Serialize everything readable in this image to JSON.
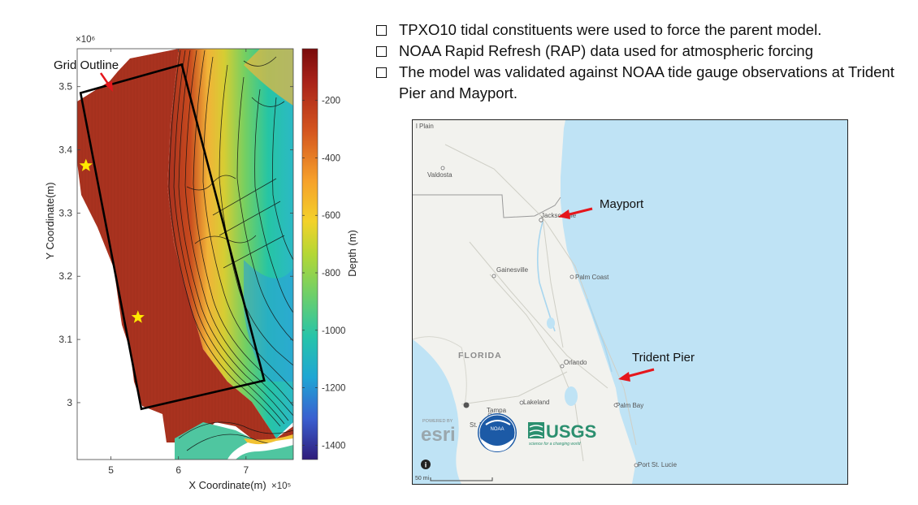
{
  "bathymetry_chart": {
    "chart_data": {
      "type": "heatmap",
      "title": "",
      "xlabel": "X Coordinate(m)",
      "ylabel": "Y Coordinate(m)",
      "x_multiplier": "×10⁵",
      "y_multiplier": "×10⁶",
      "xlim": [
        4.5,
        7.7
      ],
      "ylim": [
        2.91,
        3.56
      ],
      "x_ticks": [
        5,
        6,
        7
      ],
      "y_ticks": [
        3,
        3.1,
        3.2,
        3.3,
        3.4,
        3.5
      ],
      "colorbar": {
        "label": "Depth (m)",
        "range": [
          -1450,
          -20
        ],
        "ticks": [
          -200,
          -400,
          -600,
          -800,
          -1000,
          -1200,
          -1400
        ],
        "colormap": "parula-to-dark-red"
      },
      "annotations": {
        "grid_outline_label": "Grid Outline",
        "grid_outline_corners": [
          [
            4.55,
            3.49
          ],
          [
            6.05,
            3.535
          ],
          [
            7.27,
            3.035
          ],
          [
            5.45,
            2.99
          ]
        ],
        "station_stars": [
          [
            4.63,
            3.375
          ],
          [
            5.4,
            3.135
          ]
        ]
      }
    },
    "colors": {
      "outline": "#000000",
      "star": "#ffea00",
      "arrow": "#e5161c"
    }
  },
  "bullets": [
    "TPXO10 tidal constituents were used to force the parent model.",
    "NOAA Rapid Refresh (RAP) data used for atmospheric forcing",
    "The model was validated against NOAA tide gauge observations at Trident Pier and Mayport."
  ],
  "map": {
    "place_labels": {
      "plain": "l Plain",
      "valdosta": "Valdosta",
      "jacksonville": "Jacksonville",
      "gainesville": "Gainesville",
      "palm_coast": "Palm Coast",
      "florida": "FLORIDA",
      "orlando": "Orlando",
      "lakeland": "Lakeland",
      "tampa": "Tampa",
      "st_pete": "St. Petersburg",
      "palm_bay": "Palm Bay",
      "port_st_lucie": "Port St. Lucie"
    },
    "callouts": {
      "mayport": "Mayport",
      "trident": "Trident Pier"
    },
    "logos": {
      "powered_by": "POWERED BY",
      "esri": "esri",
      "noaa": "NOAA",
      "usgs": "USGS",
      "usgs_tagline": "science for a changing world"
    },
    "scale_label": "50 mi",
    "info_icon": "i",
    "colors": {
      "water": "#bfe3f5",
      "land": "#f2f2ee",
      "callout_arrow": "#e5161c"
    }
  }
}
